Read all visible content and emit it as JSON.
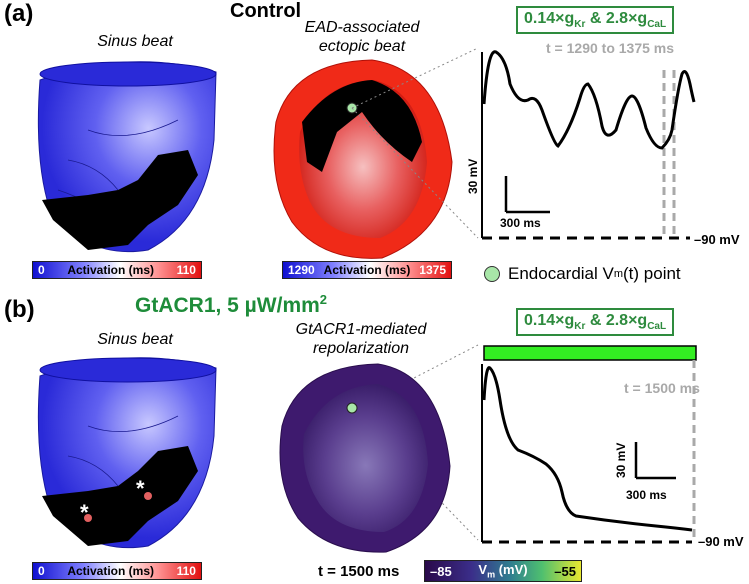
{
  "panels": {
    "a": {
      "label": "(a)",
      "title": "Control",
      "left_caption": "Sinus beat",
      "mid_caption": "EAD-associated ectopic beat",
      "gbox_parts": [
        "0.14×g",
        "Kr",
        " & 2.8×g",
        "CaL"
      ],
      "time_label": "t = 1290 to 1375 ms",
      "scale_v": "30 mV",
      "scale_t": "300 ms",
      "rest_label": "–90 mV",
      "left_bar": {
        "min": "0",
        "title": "Activation (ms)",
        "max": "110"
      },
      "mid_bar": {
        "min": "1290",
        "title": "Activation (ms)",
        "max": "1375"
      },
      "legend": {
        "text": "Endocardial V",
        "sub": "m",
        "suffix": "(t) point",
        "marker_color": "#a8e6a8"
      }
    },
    "b": {
      "label": "(b)",
      "title": "GtACR1, 5 µW/mm",
      "title_sup": "2",
      "left_caption": "Sinus beat",
      "mid_caption": "GtACR1-mediated repolarization",
      "gbox_parts": [
        "0.14×g",
        "Kr",
        " & 2.8×g",
        "CaL"
      ],
      "time_label": "t = 1500 ms",
      "scale_v": "30 mV",
      "scale_t": "300 ms",
      "rest_label": "–90 mV",
      "left_bar": {
        "min": "0",
        "title": "Activation (ms)",
        "max": "110"
      },
      "mid_time": "t = 1500 ms",
      "vm_bar": {
        "min": "–85",
        "title_a": "V",
        "title_sub": "m",
        "title_b": " (mV)",
        "max": "–55"
      },
      "asterisk": "*",
      "light_bar_color": "#33ee22"
    }
  },
  "colors": {
    "green": "#2e8b3e",
    "grey": "#a9a9a9",
    "heart_blue": "#3a3ae0",
    "heart_red": "#ee2a1a"
  }
}
